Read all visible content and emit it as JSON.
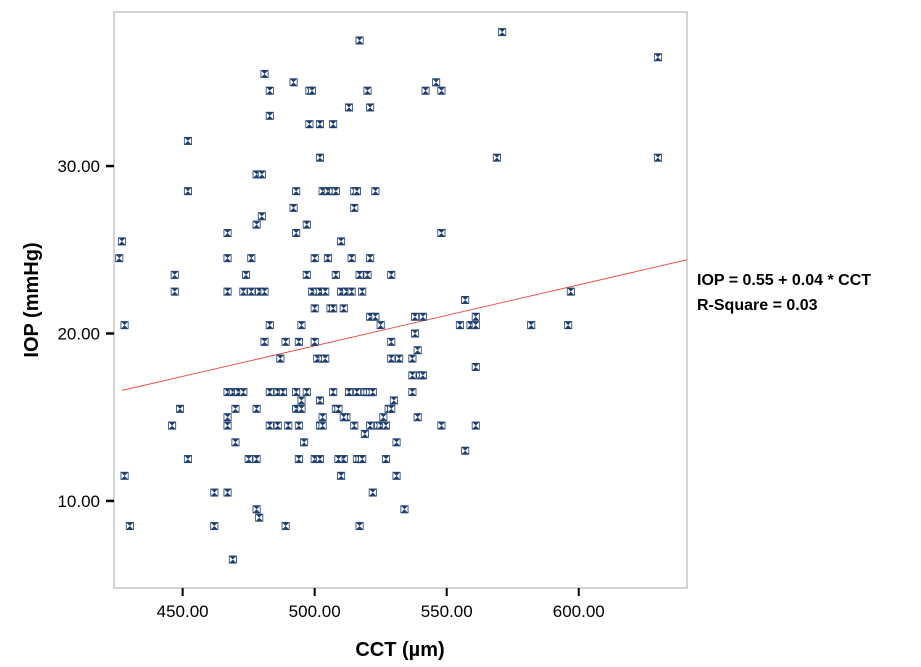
{
  "chart_data": {
    "type": "scatter",
    "title": "",
    "xlabel": "CCT (µm)",
    "ylabel": "IOP (mmHg)",
    "xlim": [
      424,
      641
    ],
    "ylim": [
      4.8,
      39.2
    ],
    "xticks": [
      {
        "value": 450,
        "label": "450.00"
      },
      {
        "value": 500,
        "label": "500.00"
      },
      {
        "value": 550,
        "label": "550.00"
      },
      {
        "value": 600,
        "label": "600.00"
      }
    ],
    "yticks": [
      {
        "value": 10,
        "label": "10.00"
      },
      {
        "value": 20,
        "label": "20.00"
      },
      {
        "value": 30,
        "label": "30.00"
      }
    ],
    "grid": false,
    "legend": "none",
    "colors": {
      "marker": "#1f3f6e",
      "fit_line": "#e8443a",
      "frame": "#aaaaaa"
    },
    "fit_line": {
      "x": [
        427,
        641
      ],
      "y": [
        16.6,
        24.4
      ]
    },
    "annotations": [
      "IOP = 0.55 + 0.04 * CCT",
      "R-Square = 0.03"
    ],
    "points": [
      [
        427,
        25.5
      ],
      [
        426,
        24.5
      ],
      [
        428,
        20.5
      ],
      [
        428,
        11.5
      ],
      [
        430,
        8.5
      ],
      [
        447,
        23.5
      ],
      [
        447,
        22.5
      ],
      [
        446,
        14.5
      ],
      [
        449,
        15.5
      ],
      [
        452,
        31.5
      ],
      [
        452,
        28.5
      ],
      [
        452,
        12.5
      ],
      [
        462,
        10.5
      ],
      [
        462,
        8.5
      ],
      [
        467,
        10.5
      ],
      [
        469,
        6.5
      ],
      [
        467,
        26
      ],
      [
        467,
        24.5
      ],
      [
        467,
        22.5
      ],
      [
        467,
        16.5
      ],
      [
        469,
        16.5
      ],
      [
        471,
        16.5
      ],
      [
        473,
        16.5
      ],
      [
        467,
        15
      ],
      [
        467,
        14.5
      ],
      [
        470,
        15.5
      ],
      [
        470,
        13.5
      ],
      [
        473,
        22.5
      ],
      [
        474,
        23.5
      ],
      [
        475,
        12.5
      ],
      [
        476,
        24.5
      ],
      [
        476,
        22.5
      ],
      [
        478,
        26.5
      ],
      [
        478,
        29.5
      ],
      [
        480,
        29.5
      ],
      [
        480,
        27
      ],
      [
        479,
        22.5
      ],
      [
        481,
        22.5
      ],
      [
        478,
        15.5
      ],
      [
        478,
        12.5
      ],
      [
        478,
        9.5
      ],
      [
        479,
        9
      ],
      [
        481,
        35.5
      ],
      [
        483,
        34.5
      ],
      [
        483,
        33
      ],
      [
        481,
        19.5
      ],
      [
        483,
        20.5
      ],
      [
        483,
        14.5
      ],
      [
        483,
        16.5
      ],
      [
        486,
        16.5
      ],
      [
        488,
        16.5
      ],
      [
        486,
        14.5
      ],
      [
        487,
        18.5
      ],
      [
        489,
        19.5
      ],
      [
        490,
        14.5
      ],
      [
        489,
        8.5
      ],
      [
        492,
        35
      ],
      [
        492,
        27.5
      ],
      [
        493,
        26
      ],
      [
        493,
        28.5
      ],
      [
        494,
        19.5
      ],
      [
        493,
        16.5
      ],
      [
        493,
        15.5
      ],
      [
        494,
        14.5
      ],
      [
        494,
        12.5
      ],
      [
        495,
        20.5
      ],
      [
        495,
        16
      ],
      [
        495,
        15.5
      ],
      [
        496,
        13.5
      ],
      [
        497,
        16.5
      ],
      [
        497,
        26.5
      ],
      [
        497,
        23.5
      ],
      [
        498,
        34.5
      ],
      [
        499,
        34.5
      ],
      [
        498,
        32.5
      ],
      [
        499,
        22.5
      ],
      [
        500,
        24.5
      ],
      [
        500,
        21.5
      ],
      [
        500,
        19.5
      ],
      [
        500,
        12.5
      ],
      [
        501,
        22.5
      ],
      [
        502,
        32.5
      ],
      [
        502,
        30.5
      ],
      [
        502,
        22.5
      ],
      [
        501,
        18.5
      ],
      [
        503,
        18.5
      ],
      [
        502,
        16
      ],
      [
        502,
        14.5
      ],
      [
        503,
        14.5
      ],
      [
        503,
        15
      ],
      [
        502,
        12.5
      ],
      [
        503,
        28.5
      ],
      [
        505,
        28.5
      ],
      [
        504,
        22.5
      ],
      [
        504,
        18.5
      ],
      [
        505,
        24.5
      ],
      [
        506,
        21.5
      ],
      [
        507,
        32.5
      ],
      [
        507,
        28.5
      ],
      [
        508,
        28.5
      ],
      [
        508,
        23.5
      ],
      [
        507,
        21.5
      ],
      [
        507,
        16.5
      ],
      [
        508,
        15.5
      ],
      [
        509,
        15.5
      ],
      [
        510,
        25.5
      ],
      [
        510,
        22.5
      ],
      [
        511,
        21.5
      ],
      [
        511,
        12.5
      ],
      [
        509,
        12.5
      ],
      [
        510,
        11.5
      ],
      [
        512,
        22.5
      ],
      [
        513,
        16.5
      ],
      [
        512,
        15
      ],
      [
        511,
        15
      ],
      [
        513,
        33.5
      ],
      [
        514,
        24.5
      ],
      [
        514,
        22.5
      ],
      [
        515,
        27.5
      ],
      [
        515,
        28.5
      ],
      [
        516,
        28.5
      ],
      [
        516,
        16.5
      ],
      [
        515,
        14.5
      ],
      [
        516,
        12.5
      ],
      [
        517,
        37.5
      ],
      [
        517,
        23.5
      ],
      [
        518,
        22.5
      ],
      [
        517,
        12.5
      ],
      [
        517,
        8.5
      ],
      [
        518,
        12.5
      ],
      [
        519,
        16.5
      ],
      [
        519,
        14
      ],
      [
        520,
        16.5
      ],
      [
        520,
        34.5
      ],
      [
        521,
        33.5
      ],
      [
        521,
        24.5
      ],
      [
        520,
        23.5
      ],
      [
        521,
        21
      ],
      [
        521,
        16.5
      ],
      [
        522,
        16.5
      ],
      [
        521,
        14.5
      ],
      [
        522,
        10.5
      ],
      [
        523,
        28.5
      ],
      [
        523,
        21
      ],
      [
        524,
        14.5
      ],
      [
        525,
        14.5
      ],
      [
        525,
        20.5
      ],
      [
        526,
        15
      ],
      [
        527,
        14.5
      ],
      [
        527,
        12.5
      ],
      [
        528,
        15.5
      ],
      [
        529,
        23.5
      ],
      [
        529,
        19.5
      ],
      [
        529,
        18.5
      ],
      [
        529,
        15.5
      ],
      [
        530,
        16
      ],
      [
        531,
        13.5
      ],
      [
        531,
        11.5
      ],
      [
        532,
        18.5
      ],
      [
        534,
        9.5
      ],
      [
        537,
        18.5
      ],
      [
        537,
        17.5
      ],
      [
        537,
        16.5
      ],
      [
        538,
        21
      ],
      [
        538,
        20
      ],
      [
        539,
        19
      ],
      [
        539,
        15
      ],
      [
        540,
        17.5
      ],
      [
        541,
        17.5
      ],
      [
        541,
        21
      ],
      [
        542,
        34.5
      ],
      [
        546,
        35
      ],
      [
        548,
        34.5
      ],
      [
        548,
        26
      ],
      [
        548,
        14.5
      ],
      [
        555,
        20.5
      ],
      [
        557,
        22
      ],
      [
        557,
        13
      ],
      [
        559,
        20.5
      ],
      [
        561,
        20.5
      ],
      [
        561,
        21
      ],
      [
        561,
        18
      ],
      [
        561,
        14.5
      ],
      [
        569,
        30.5
      ],
      [
        571,
        38
      ],
      [
        582,
        20.5
      ],
      [
        596,
        20.5
      ],
      [
        597,
        22.5
      ],
      [
        630,
        36.5
      ],
      [
        630,
        30.5
      ]
    ]
  }
}
